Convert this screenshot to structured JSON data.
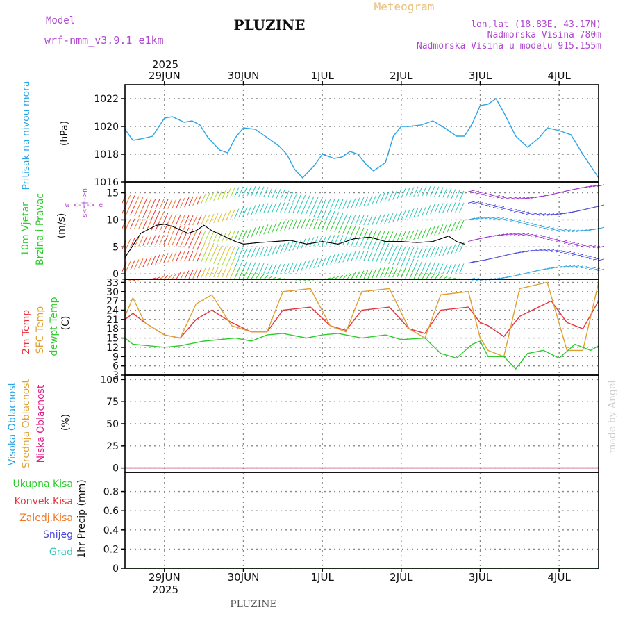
{
  "header": {
    "model_label": "Model",
    "model_name": "wrf-nmm_v3.9.1 e1km",
    "station": "PLUZINE",
    "title": "Meteogram",
    "lonlat": "lon,lat (18.83E, 43.17N)",
    "elevation": "Nadmorska Visina 780m",
    "model_elevation": "Nadmorska Visina u modelu 915.155m"
  },
  "footer": {
    "station": "PLUZINE",
    "credit": "made by Angel"
  },
  "time_axis": {
    "year": "2025",
    "day_labels": [
      "29JUN",
      "30JUN",
      "1JUL",
      "2JUL",
      "3JUL",
      "4JUL"
    ],
    "start_day": 28.5,
    "end_day": 34.5
  },
  "colors": {
    "pressure": "#2aa4e6",
    "temp2m": "#e8333c",
    "sfc_temp": "#e0a030",
    "dewpt": "#2ccc2c",
    "wind_speed": "#000000",
    "high_cloud": "#2aa4e6",
    "mid_cloud": "#e0a030",
    "low_cloud": "#e0208a",
    "total_precip": "#2ccc2c",
    "conv_precip": "#e8333c",
    "frz_precip": "#f07828",
    "snow": "#4848e0",
    "graupel": "#2cc8b8"
  },
  "panels": {
    "pressure": {
      "label_line1": "Pritisak na nivou mora",
      "unit": "(hPa)"
    },
    "wind": {
      "label_line1": "10m Vjetar",
      "label_line2": "Brzina i Pravac",
      "unit": "(m/s)",
      "compass_h": "w <-|-> e",
      "compass_v": "s<-|->n"
    },
    "temp": {
      "label_line1": "2m Temp",
      "label_line2": "SFC Temp",
      "label_line3": "dewpt Temp",
      "unit": "(C)"
    },
    "cloud": {
      "label_line1": "Visoka Oblacnost",
      "label_line2": "Srednja Oblacnost",
      "label_line3": "Niska Oblacnost",
      "unit": "(%)"
    },
    "precip": {
      "unit": "1hr Precip (mm)",
      "legend": [
        "Ukupna Kisa",
        "Konvek.Kisa",
        "Zaledj.Kisa",
        "Snijeg",
        "Grad"
      ]
    }
  },
  "chart_data": [
    {
      "type": "line",
      "title": "Pritisak na nivou mora",
      "ylabel": "(hPa)",
      "ylim": [
        1016,
        1023
      ],
      "yticks": [
        1016,
        1018,
        1020,
        1022
      ],
      "x_units": "days (June 28.5 = 29JUN 00:00 minus 12h)",
      "series": [
        {
          "name": "Pritisak na nivou mora",
          "x": [
            28.5,
            28.6,
            28.7,
            28.85,
            29.0,
            29.1,
            29.25,
            29.35,
            29.45,
            29.55,
            29.7,
            29.8,
            29.9,
            30.0,
            30.15,
            30.3,
            30.45,
            30.55,
            30.65,
            30.75,
            30.9,
            31.0,
            31.15,
            31.25,
            31.35,
            31.45,
            31.55,
            31.65,
            31.8,
            31.9,
            32.0,
            32.1,
            32.25,
            32.4,
            32.55,
            32.7,
            32.8,
            32.9,
            33.0,
            33.1,
            33.2,
            33.3,
            33.45,
            33.6,
            33.75,
            33.85,
            34.0,
            34.15,
            34.3,
            34.5
          ],
          "values": [
            1019.8,
            1019.0,
            1019.1,
            1019.3,
            1020.6,
            1020.7,
            1020.3,
            1020.4,
            1020.1,
            1019.2,
            1018.3,
            1018.1,
            1019.2,
            1019.9,
            1019.8,
            1019.2,
            1018.6,
            1018.0,
            1016.9,
            1016.3,
            1017.2,
            1018.0,
            1017.7,
            1017.8,
            1018.2,
            1018.0,
            1017.3,
            1016.8,
            1017.4,
            1019.3,
            1020.0,
            1020.0,
            1020.1,
            1020.4,
            1019.9,
            1019.3,
            1019.3,
            1020.2,
            1021.5,
            1021.6,
            1022.0,
            1021.0,
            1019.3,
            1018.5,
            1019.2,
            1019.9,
            1019.7,
            1019.4,
            1018.0,
            1016.3
          ]
        }
      ]
    },
    {
      "type": "line",
      "title": "10m Vjetar Brzina i Pravac",
      "ylabel": "(m/s)",
      "ylim": [
        -1,
        17
      ],
      "yticks": [
        0,
        5,
        10,
        15
      ],
      "series": [
        {
          "name": "10m Vjetar",
          "x": [
            28.5,
            28.7,
            28.9,
            29.0,
            29.1,
            29.3,
            29.4,
            29.5,
            29.6,
            29.75,
            29.9,
            30.0,
            30.2,
            30.4,
            30.6,
            30.8,
            31.0,
            31.2,
            31.4,
            31.6,
            31.8,
            32.0,
            32.2,
            32.4,
            32.6,
            32.7,
            32.8
          ],
          "values": [
            3.0,
            7.5,
            9.0,
            9.2,
            8.8,
            7.5,
            8.0,
            9.0,
            8.0,
            7.0,
            6.0,
            5.5,
            5.8,
            6.0,
            6.2,
            5.5,
            6.0,
            5.5,
            6.5,
            6.8,
            6.0,
            6.0,
            5.8,
            6.0,
            7.0,
            6.0,
            5.5
          ]
        }
      ]
    },
    {
      "type": "line",
      "title": "2m Temp / SFC Temp / dewpt Temp",
      "ylabel": "(C)",
      "ylim": [
        3,
        34
      ],
      "yticks": [
        3,
        6,
        9,
        12,
        15,
        18,
        21,
        24,
        27,
        30,
        33
      ],
      "series": [
        {
          "name": "2m Temp",
          "x": [
            28.5,
            28.6,
            28.75,
            29.0,
            29.2,
            29.4,
            29.6,
            29.85,
            30.1,
            30.3,
            30.5,
            30.85,
            31.1,
            31.3,
            31.5,
            31.85,
            32.1,
            32.3,
            32.5,
            32.85,
            33.0,
            33.1,
            33.3,
            33.5,
            33.9,
            34.1,
            34.3,
            34.5
          ],
          "values": [
            21,
            23,
            20,
            16,
            15,
            21,
            24,
            20,
            17,
            17,
            24,
            25,
            19,
            17.5,
            24,
            25,
            18,
            16.5,
            24,
            25,
            20,
            19,
            15.5,
            22,
            27,
            20,
            18,
            27
          ]
        },
        {
          "name": "SFC Temp",
          "x": [
            28.5,
            28.6,
            28.75,
            29.0,
            29.2,
            29.4,
            29.6,
            29.85,
            30.1,
            30.3,
            30.5,
            30.85,
            31.1,
            31.3,
            31.5,
            31.85,
            32.1,
            32.3,
            32.5,
            32.85,
            33.0,
            33.1,
            33.3,
            33.5,
            33.85,
            34.1,
            34.3,
            34.5
          ],
          "values": [
            22,
            28,
            20,
            16,
            15,
            26,
            29,
            19,
            17,
            17,
            30,
            31,
            19,
            17,
            30,
            31,
            18,
            15,
            29,
            30,
            15,
            11,
            9,
            31,
            33,
            11,
            11,
            33
          ]
        },
        {
          "name": "dewpt Temp",
          "x": [
            28.5,
            28.6,
            28.8,
            29.0,
            29.2,
            29.5,
            29.7,
            29.9,
            30.1,
            30.3,
            30.5,
            30.8,
            31.0,
            31.2,
            31.5,
            31.8,
            32.0,
            32.3,
            32.5,
            32.7,
            32.9,
            33.0,
            33.1,
            33.3,
            33.45,
            33.6,
            33.8,
            34.0,
            34.2,
            34.4,
            34.5
          ],
          "values": [
            15,
            13,
            12.5,
            12,
            12.5,
            14,
            14.5,
            15,
            14,
            16,
            16.5,
            15,
            16,
            16.5,
            15,
            16,
            14.5,
            15,
            10,
            8.5,
            13,
            14,
            9,
            9,
            5,
            10,
            11,
            8.5,
            13,
            11,
            12.5
          ]
        }
      ]
    },
    {
      "type": "line",
      "title": "Oblacnost",
      "ylabel": "(%)",
      "ylim": [
        -5,
        105
      ],
      "yticks": [
        0,
        25,
        50,
        75,
        100
      ],
      "series": [
        {
          "name": "Visoka Oblacnost",
          "x": [
            28.5,
            34.5
          ],
          "values": [
            0,
            0
          ]
        },
        {
          "name": "Srednja Oblacnost",
          "x": [
            28.5,
            34.5
          ],
          "values": [
            0,
            0
          ]
        },
        {
          "name": "Niska Oblacnost",
          "x": [
            28.5,
            34.5
          ],
          "values": [
            0,
            0
          ]
        }
      ]
    },
    {
      "type": "line",
      "title": "1hr Precip",
      "ylabel": "1hr Precip (mm)",
      "ylim": [
        0,
        1
      ],
      "yticks": [
        0,
        0.2,
        0.4,
        0.6,
        0.8
      ],
      "series": [
        {
          "name": "Ukupna Kisa",
          "x": [
            28.5,
            34.5
          ],
          "values": [
            0,
            0
          ]
        }
      ]
    }
  ]
}
